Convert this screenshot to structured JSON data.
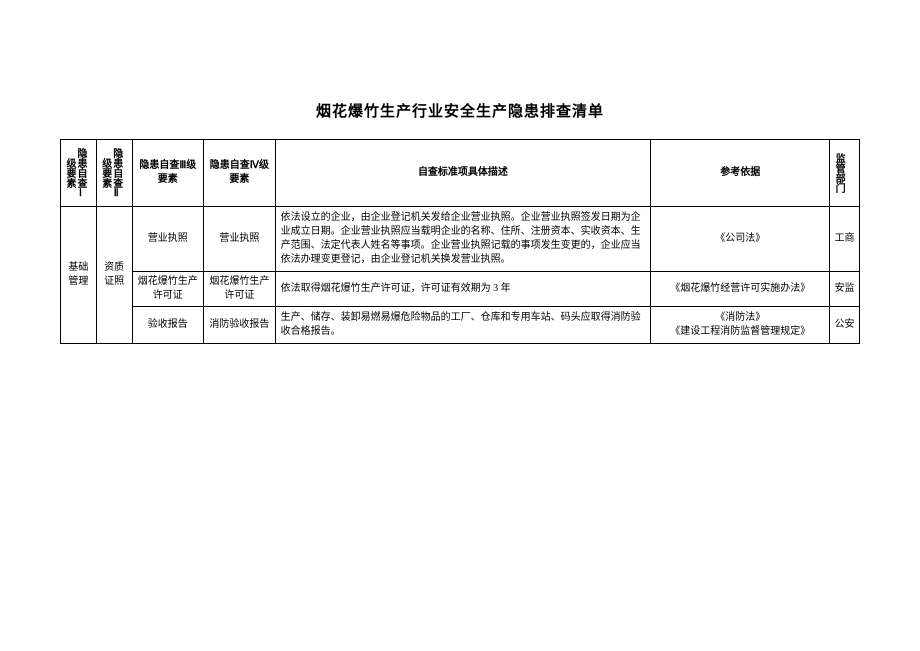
{
  "title": "烟花爆竹生产行业安全生产隐患排查清单",
  "headers": {
    "h1": "隐患自查Ⅰ级要素",
    "h2": "隐患自查Ⅱ级要素",
    "h3": "隐患自查Ⅲ级要素",
    "h4": "隐患自查Ⅳ级要素",
    "h5": "自查标准项具体描述",
    "h6": "参考依据",
    "h7": "监管部门"
  },
  "level1": "基础管理",
  "level2": "资质证照",
  "rows": [
    {
      "l3": "营业执照",
      "l4": "营业执照",
      "desc": "依法设立的企业，由企业登记机关发给企业营业执照。企业营业执照签发日期为企业成立日期。企业营业执照应当载明企业的名称、住所、注册资本、实收资本、生产范围、法定代表人姓名等事项。企业营业执照记载的事项发生变更的，企业应当依法办理变更登记，由企业登记机关换发营业执照。",
      "ref": "《公司法》",
      "dept": "工商"
    },
    {
      "l3": "烟花爆竹生产许可证",
      "l4": "烟花爆竹生产许可证",
      "desc": "依法取得烟花爆竹生产许可证，许可证有效期为 3 年",
      "ref": "《烟花爆竹经营许可实施办法》",
      "dept": "安监"
    },
    {
      "l3": "验收报告",
      "l4": "消防验收报告",
      "desc": "生产、储存、装卸易燃易爆危险物品的工厂、仓库和专用车站、码头应取得消防验收合格报告。",
      "ref": "《消防法》\n《建设工程消防监督管理规定》",
      "dept": "公安"
    }
  ]
}
